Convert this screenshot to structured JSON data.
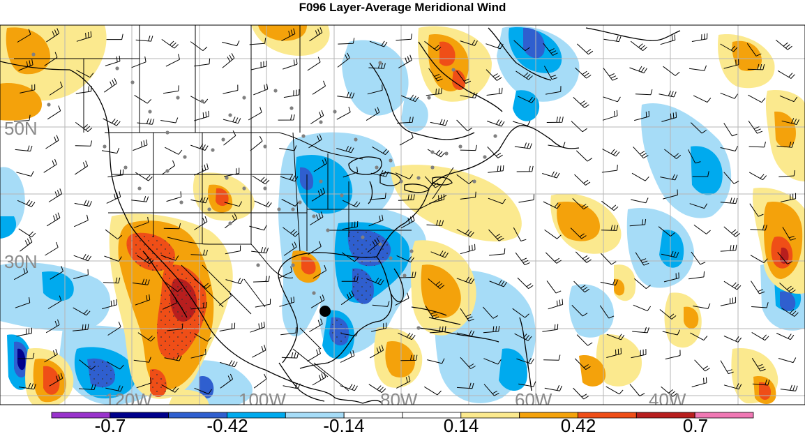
{
  "title": "F096 Layer-Average Meridional Wind",
  "map": {
    "projection": "lat-lon",
    "region": "North America / North Atlantic",
    "lat_labels": [
      "50N",
      "30N"
    ],
    "lon_labels": [
      "120W",
      "100W",
      "80W",
      "60W",
      "40W"
    ],
    "field": "meridional wind anomaly (shaded)",
    "overlays": [
      "wind barbs",
      "observation stations (gray dots)",
      "storm center (black dot)"
    ]
  },
  "colorbar": {
    "labels": [
      "-0.7",
      "-0.42",
      "-0.14",
      "0.14",
      "0.42",
      "0.7"
    ],
    "colors": [
      "#9933cc",
      "#00008b",
      "#2f5fcf",
      "#00aaee",
      "#a6dcf7",
      "#ffffff",
      "#ffffff",
      "#fbe98e",
      "#f4a20b",
      "#ef4e17",
      "#b81e1e",
      "#f078b4"
    ]
  },
  "colors": {
    "neg_1": "#a6dcf7",
    "neg_2": "#00aaee",
    "neg_3": "#2f5fcf",
    "neg_4": "#00008b",
    "pos_1": "#fbe98e",
    "pos_2": "#f4a20b",
    "pos_3": "#ef4e17",
    "pos_4": "#b81e1e"
  }
}
